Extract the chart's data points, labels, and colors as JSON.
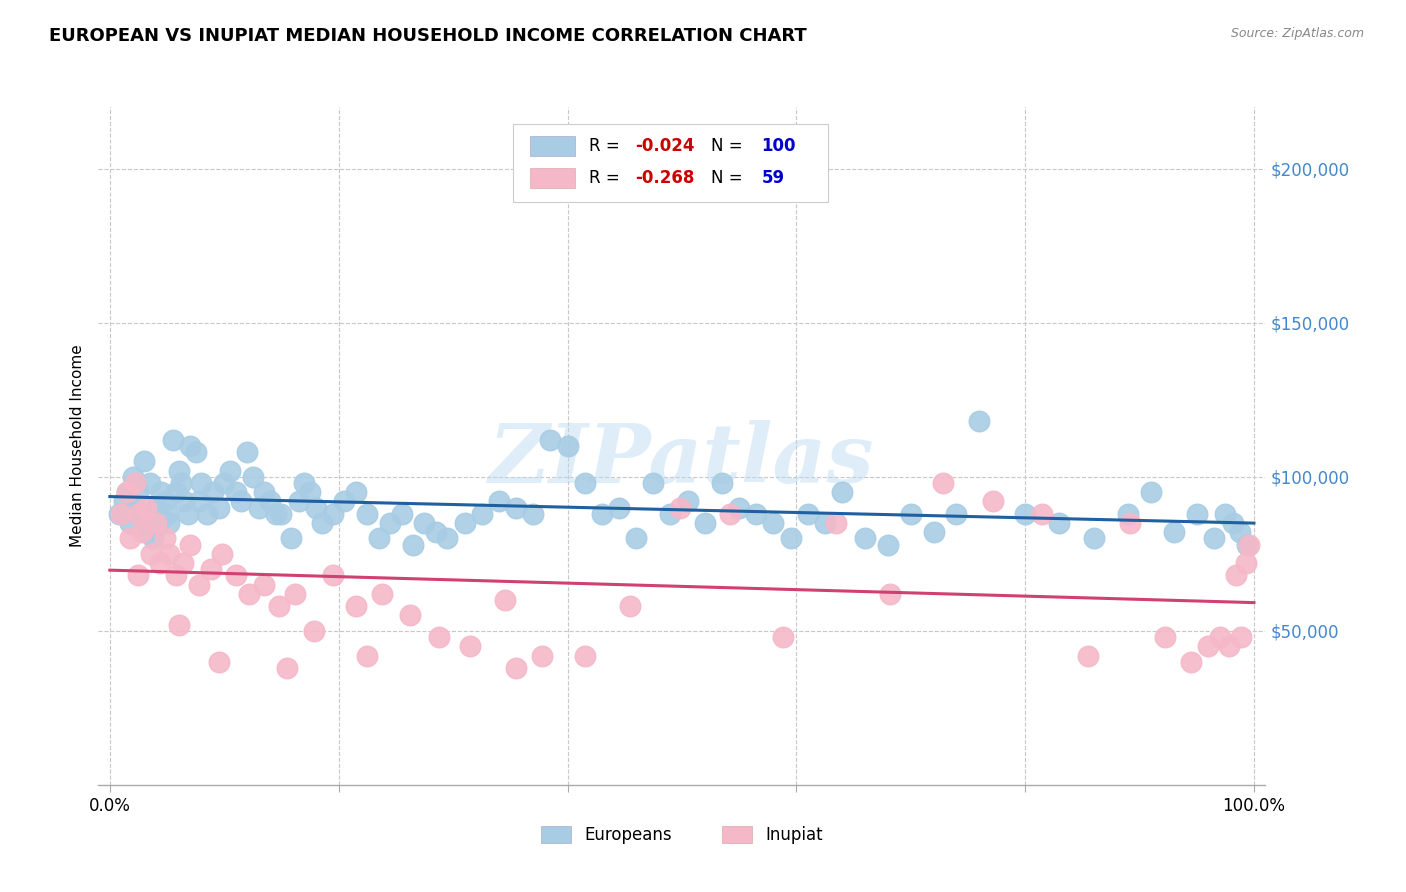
{
  "title": "EUROPEAN VS INUPIAT MEDIAN HOUSEHOLD INCOME CORRELATION CHART",
  "source": "Source: ZipAtlas.com",
  "ylabel": "Median Household Income",
  "watermark": "ZIPatlas",
  "xlim": [
    -0.01,
    1.01
  ],
  "ylim": [
    0,
    220000
  ],
  "ytick_positions": [
    50000,
    100000,
    150000,
    200000
  ],
  "ytick_labels": [
    "$50,000",
    "$100,000",
    "$150,000",
    "$200,000"
  ],
  "blue_scatter_color": "#a8cce4",
  "pink_scatter_color": "#f5b8c8",
  "blue_line_color": "#2060a0",
  "pink_line_color": "#d04070",
  "label_color": "#4488cc",
  "R_value_color": "#cc0000",
  "N_value_color": "#0000cc",
  "background": "#ffffff",
  "grid_color": "#c8c8c8",
  "R_blue": -0.024,
  "N_blue": 100,
  "R_pink": -0.268,
  "N_pink": 59,
  "blue_points_x": [
    0.008,
    0.012,
    0.015,
    0.018,
    0.02,
    0.022,
    0.025,
    0.028,
    0.03,
    0.032,
    0.035,
    0.038,
    0.04,
    0.042,
    0.045,
    0.048,
    0.05,
    0.052,
    0.055,
    0.058,
    0.06,
    0.062,
    0.065,
    0.068,
    0.07,
    0.075,
    0.078,
    0.08,
    0.085,
    0.09,
    0.095,
    0.1,
    0.105,
    0.11,
    0.115,
    0.12,
    0.125,
    0.13,
    0.135,
    0.14,
    0.145,
    0.15,
    0.158,
    0.165,
    0.17,
    0.175,
    0.18,
    0.185,
    0.195,
    0.205,
    0.215,
    0.225,
    0.235,
    0.245,
    0.255,
    0.265,
    0.275,
    0.285,
    0.295,
    0.31,
    0.325,
    0.34,
    0.355,
    0.37,
    0.385,
    0.4,
    0.415,
    0.43,
    0.445,
    0.46,
    0.475,
    0.49,
    0.505,
    0.52,
    0.535,
    0.55,
    0.565,
    0.58,
    0.595,
    0.61,
    0.625,
    0.64,
    0.66,
    0.68,
    0.7,
    0.72,
    0.74,
    0.76,
    0.8,
    0.83,
    0.86,
    0.89,
    0.91,
    0.93,
    0.95,
    0.965,
    0.975,
    0.982,
    0.988,
    0.994
  ],
  "blue_points_y": [
    88000,
    92000,
    95000,
    85000,
    100000,
    90000,
    95000,
    88000,
    105000,
    82000,
    98000,
    80000,
    90000,
    85000,
    95000,
    92000,
    88000,
    85000,
    112000,
    95000,
    102000,
    98000,
    92000,
    88000,
    110000,
    108000,
    92000,
    98000,
    88000,
    95000,
    90000,
    98000,
    102000,
    95000,
    92000,
    108000,
    100000,
    90000,
    95000,
    92000,
    88000,
    88000,
    80000,
    92000,
    98000,
    95000,
    90000,
    85000,
    88000,
    92000,
    95000,
    88000,
    80000,
    85000,
    88000,
    78000,
    85000,
    82000,
    80000,
    85000,
    88000,
    92000,
    90000,
    88000,
    112000,
    110000,
    98000,
    88000,
    90000,
    80000,
    98000,
    88000,
    92000,
    85000,
    98000,
    90000,
    88000,
    85000,
    80000,
    88000,
    85000,
    95000,
    80000,
    78000,
    88000,
    82000,
    88000,
    118000,
    88000,
    85000,
    80000,
    88000,
    95000,
    82000,
    88000,
    80000,
    88000,
    85000,
    82000,
    78000
  ],
  "pink_points_x": [
    0.01,
    0.015,
    0.018,
    0.022,
    0.025,
    0.028,
    0.032,
    0.036,
    0.04,
    0.044,
    0.048,
    0.052,
    0.058,
    0.064,
    0.07,
    0.078,
    0.088,
    0.098,
    0.11,
    0.122,
    0.135,
    0.148,
    0.162,
    0.178,
    0.195,
    0.215,
    0.238,
    0.262,
    0.288,
    0.315,
    0.345,
    0.378,
    0.415,
    0.455,
    0.498,
    0.542,
    0.588,
    0.635,
    0.682,
    0.728,
    0.772,
    0.815,
    0.855,
    0.892,
    0.922,
    0.945,
    0.96,
    0.97,
    0.978,
    0.984,
    0.989,
    0.993,
    0.996,
    0.025,
    0.06,
    0.095,
    0.155,
    0.225,
    0.355
  ],
  "pink_points_y": [
    88000,
    95000,
    80000,
    98000,
    88000,
    82000,
    90000,
    75000,
    85000,
    72000,
    80000,
    75000,
    68000,
    72000,
    78000,
    65000,
    70000,
    75000,
    68000,
    62000,
    65000,
    58000,
    62000,
    50000,
    68000,
    58000,
    62000,
    55000,
    48000,
    45000,
    60000,
    42000,
    42000,
    58000,
    90000,
    88000,
    48000,
    85000,
    62000,
    98000,
    92000,
    88000,
    42000,
    85000,
    48000,
    40000,
    45000,
    48000,
    45000,
    68000,
    48000,
    72000,
    78000,
    68000,
    52000,
    40000,
    38000,
    42000,
    38000
  ]
}
